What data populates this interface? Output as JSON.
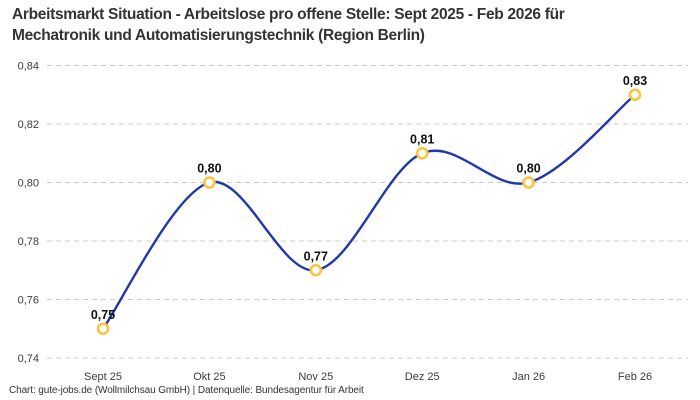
{
  "header": {
    "title_line1": "Arbeitsmarkt Situation - Arbeitslose pro offene Stelle: Sept 2025 - Feb 2026 für",
    "title_line2": "Mechatronik und Automatisierungstechnik (Region Berlin)"
  },
  "footer": {
    "attribution": "Chart: gute-jobs.de (Wollmilchsau GmbH) | Datenquelle: Bundesagentur für Arbeit"
  },
  "chart_data": {
    "type": "line",
    "title": "Arbeitsmarkt Situation - Arbeitslose pro offene Stelle: Sept 2025 - Feb 2026 für Mechatronik und Automatisierungstechnik (Region Berlin)",
    "categories": [
      "Sept 25",
      "Okt 25",
      "Nov 25",
      "Dez 25",
      "Jan 26",
      "Feb 26"
    ],
    "series": [
      {
        "name": "Arbeitslose pro offene Stelle",
        "values": [
          0.75,
          0.8,
          0.77,
          0.81,
          0.8,
          0.83
        ]
      }
    ],
    "point_labels": [
      "0,75",
      "0,80",
      "0,77",
      "0,81",
      "0,80",
      "0,83"
    ],
    "yticks": [
      {
        "value": 0.74,
        "label": "0,74"
      },
      {
        "value": 0.76,
        "label": "0,76"
      },
      {
        "value": 0.78,
        "label": "0,78"
      },
      {
        "value": 0.8,
        "label": "0,80"
      },
      {
        "value": 0.82,
        "label": "0,82"
      },
      {
        "value": 0.84,
        "label": "0,84"
      }
    ],
    "ylim": [
      0.74,
      0.84
    ],
    "xlabel": "",
    "ylabel": "",
    "grid": "horizontal-dashed",
    "legend_position": "none",
    "line_smoothing": "spline",
    "colors": {
      "line": "#2139a8",
      "marker_stroke": "#fcc33d",
      "marker_fill": "#ffffff",
      "grid": "#cccccc",
      "title_text": "#333333",
      "tick_text": "#3d3d3d",
      "point_label_text": "#111111",
      "background": "#ffffff"
    }
  }
}
